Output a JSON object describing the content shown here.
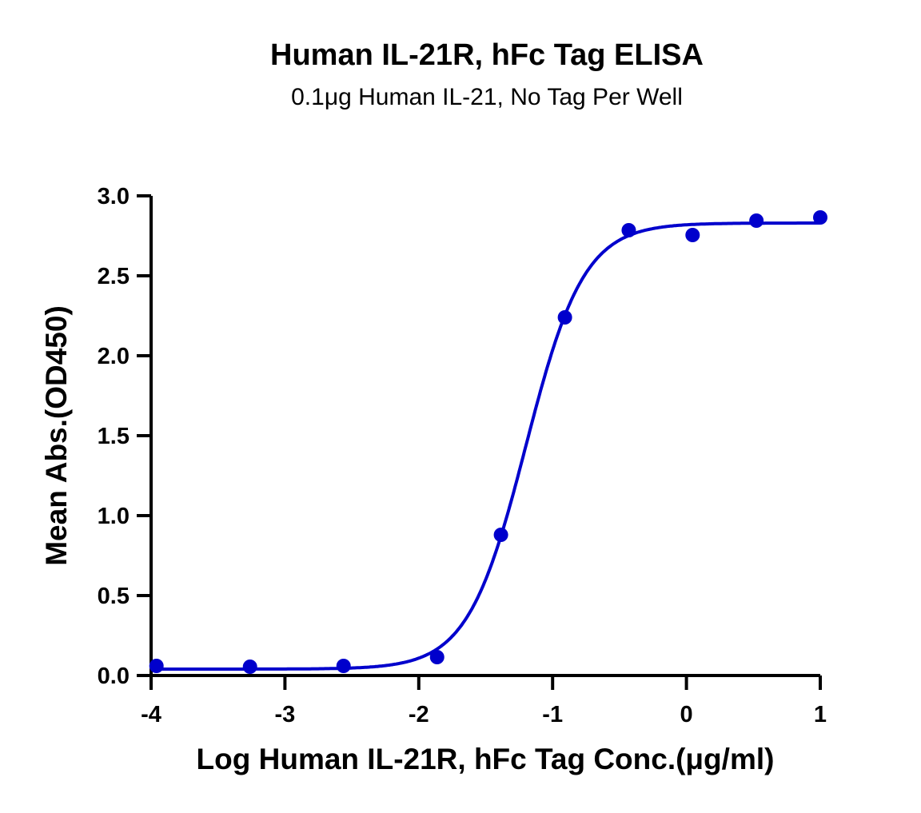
{
  "chart_data": {
    "type": "scatter",
    "title": "Human IL-21R, hFc Tag ELISA",
    "subtitle": "0.1μg Human IL-21, No Tag Per Well",
    "xlabel": "Log Human IL-21R, hFc Tag Conc.(μg/ml)",
    "ylabel": "Mean Abs.(OD450)",
    "xlim": [
      -4,
      1
    ],
    "ylim": [
      0,
      3.0
    ],
    "xticks": [
      "-4",
      "-3",
      "-2",
      "-1",
      "0",
      "1"
    ],
    "yticks": [
      "0.0",
      "0.5",
      "1.0",
      "1.5",
      "2.0",
      "2.5",
      "3.0"
    ],
    "grid": false,
    "color": "#0000CC",
    "series": [
      {
        "x": [
          -3.96,
          -3.261,
          -2.562,
          -1.863,
          -1.386,
          -0.908,
          -0.431,
          0.046,
          0.523,
          1.0
        ],
        "y": [
          0.06,
          0.055,
          0.06,
          0.115,
          0.88,
          2.24,
          2.785,
          2.755,
          2.845,
          2.865
        ]
      }
    ],
    "fit": {
      "model": "4PL",
      "bottom": 0.04,
      "top": 2.83,
      "logEC50": -1.2,
      "hill": 2.0
    }
  }
}
